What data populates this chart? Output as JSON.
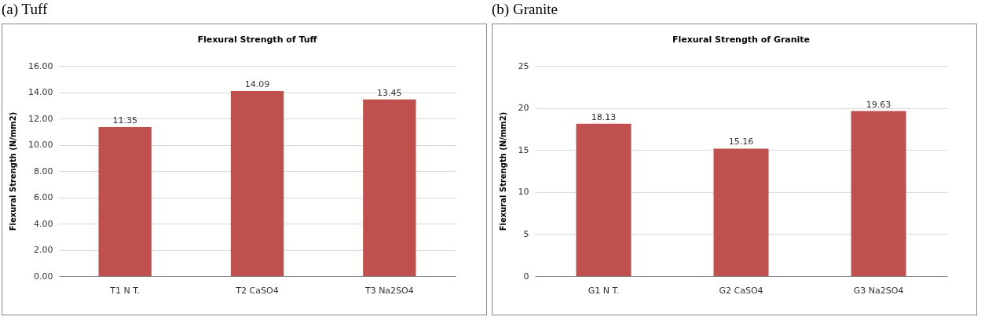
{
  "chart_data": [
    {
      "type": "bar",
      "title": "Flexural Strength of Tuff",
      "annotations": [
        "(a) Tuff"
      ],
      "ylabel": "Flexural Strength (N/mm2)",
      "categories": [
        "T1  N T.",
        "T2  CaSO4",
        "T3  Na2SO4"
      ],
      "values": [
        11.35,
        14.09,
        13.45
      ],
      "color": "#c0504d",
      "ylim": [
        0,
        16
      ],
      "yticks": [
        {
          "value": 0,
          "label": "0.00"
        },
        {
          "value": 2,
          "label": "2.00"
        },
        {
          "value": 4,
          "label": "4.00"
        },
        {
          "value": 6,
          "label": "6.00"
        },
        {
          "value": 8,
          "label": "8.00"
        },
        {
          "value": 10,
          "label": "10.00"
        },
        {
          "value": 12,
          "label": "12.00"
        },
        {
          "value": 14,
          "label": "14.00"
        },
        {
          "value": 16,
          "label": "16.00"
        }
      ],
      "grid": "y",
      "data_labels": true
    },
    {
      "type": "bar",
      "title": "Flexural Strength of Granite",
      "annotations": [
        "(b) Granite"
      ],
      "ylabel": "Flexural Strength (N/mm2)",
      "categories": [
        "G1  N T.",
        "G2  CaSO4",
        "G3  Na2SO4"
      ],
      "values": [
        18.13,
        15.16,
        19.63
      ],
      "color": "#c0504d",
      "ylim": [
        0,
        25
      ],
      "yticks": [
        0,
        5,
        10,
        15,
        20,
        25
      ],
      "grid": "y",
      "data_labels": true
    }
  ]
}
